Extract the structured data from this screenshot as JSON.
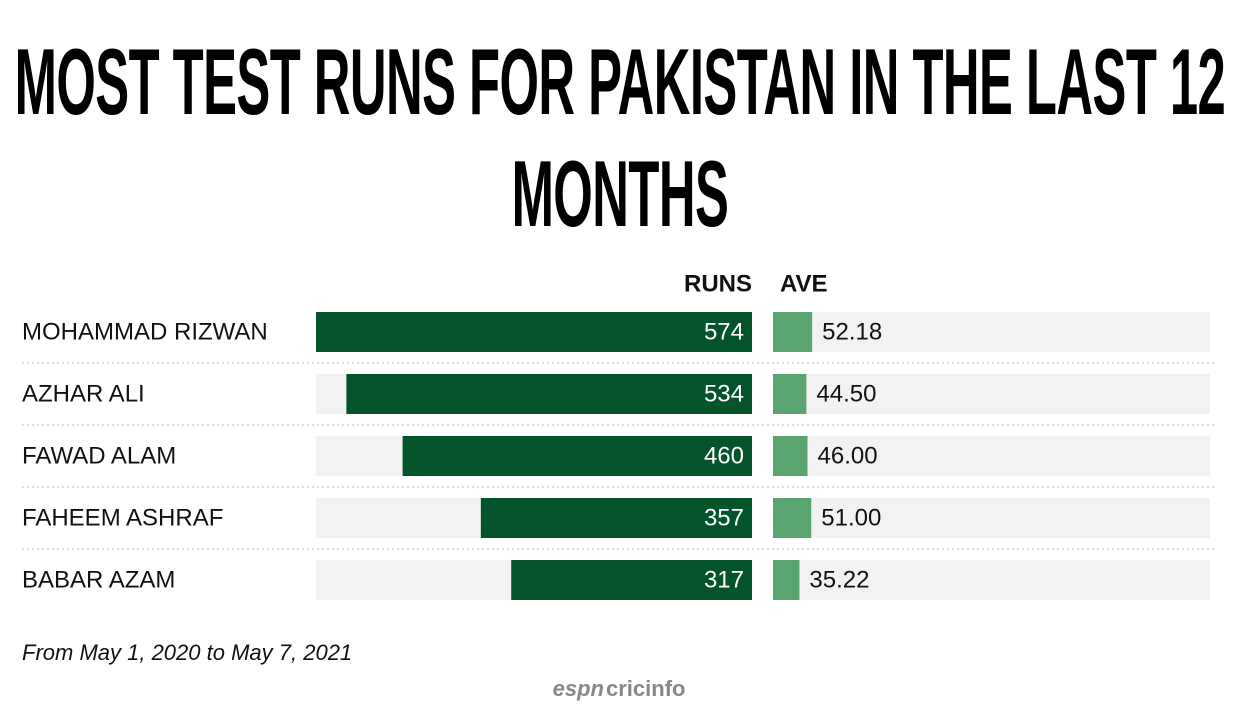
{
  "chart_data": {
    "type": "bar",
    "title": "MOST TEST RUNS FOR PAKISTAN IN THE LAST 12 MONTHS",
    "categories": [
      "MOHAMMAD RIZWAN",
      "AZHAR ALI",
      "FAWAD ALAM",
      "FAHEEM ASHRAF",
      "BABAR AZAM"
    ],
    "series": [
      {
        "name": "RUNS",
        "color": "#03542a",
        "values": [
          574,
          534,
          460,
          357,
          317
        ]
      },
      {
        "name": "AVE",
        "color": "#5aa470",
        "values": [
          52.18,
          44.5,
          46,
          51,
          35.22
        ],
        "value_labels": [
          "52.18",
          "44.50",
          "46.00",
          "51.00",
          "35.22"
        ]
      }
    ],
    "note": "From May 1, 2020 to May 7, 2021",
    "logo": {
      "brand": "ESPN",
      "site": "cricinfo"
    }
  }
}
